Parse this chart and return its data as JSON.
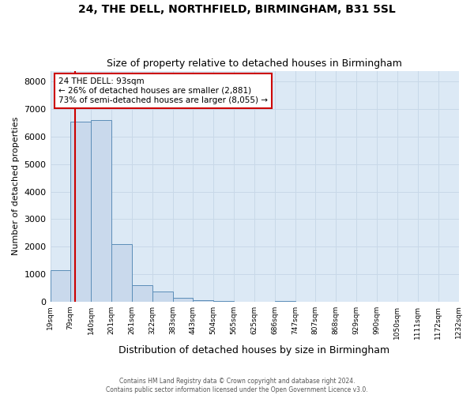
{
  "title1": "24, THE DELL, NORTHFIELD, BIRMINGHAM, B31 5SL",
  "title2": "Size of property relative to detached houses in Birmingham",
  "xlabel": "Distribution of detached houses by size in Birmingham",
  "ylabel": "Number of detached properties",
  "bar_values": [
    1150,
    6550,
    6600,
    2100,
    600,
    370,
    140,
    45,
    10,
    0,
    0,
    25,
    0,
    0,
    0,
    0,
    0,
    0,
    0,
    0
  ],
  "bin_edges": [
    19,
    79,
    140,
    201,
    261,
    322,
    383,
    443,
    504,
    565,
    625,
    686,
    747,
    807,
    868,
    929,
    990,
    1050,
    1111,
    1172,
    1232
  ],
  "bin_labels": [
    "19sqm",
    "79sqm",
    "140sqm",
    "201sqm",
    "261sqm",
    "322sqm",
    "383sqm",
    "443sqm",
    "504sqm",
    "565sqm",
    "625sqm",
    "686sqm",
    "747sqm",
    "807sqm",
    "868sqm",
    "929sqm",
    "990sqm",
    "1050sqm",
    "1111sqm",
    "1172sqm",
    "1232sqm"
  ],
  "bar_color": "#c9d9ec",
  "bar_edge_color": "#5b8db8",
  "property_sqm": 93,
  "property_line_color": "#cc0000",
  "annotation_line1": "24 THE DELL: 93sqm",
  "annotation_line2": "← 26% of detached houses are smaller (2,881)",
  "annotation_line3": "73% of semi-detached houses are larger (8,055) →",
  "annotation_box_color": "#cc0000",
  "ylim": [
    0,
    8400
  ],
  "yticks": [
    0,
    1000,
    2000,
    3000,
    4000,
    5000,
    6000,
    7000,
    8000
  ],
  "grid_color": "#c8d8e8",
  "background_color": "#dce9f5",
  "footer1": "Contains HM Land Registry data © Crown copyright and database right 2024.",
  "footer2": "Contains public sector information licensed under the Open Government Licence v3.0."
}
